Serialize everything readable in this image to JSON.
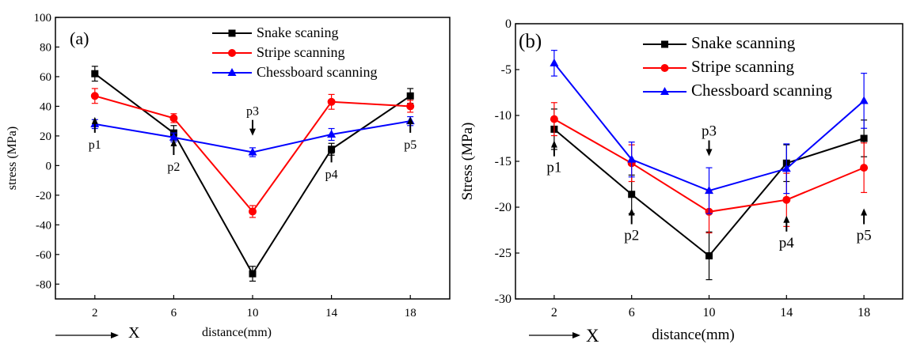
{
  "colors": {
    "snake": "#000000",
    "stripe": "#ff0000",
    "chess": "#0000ff"
  },
  "chart_data": [
    {
      "type": "line",
      "panel_label": "(a)",
      "xlabel": "distance(mm)",
      "ylabel": "stress (MPa)",
      "x_arrow_label": "X",
      "x": [
        2,
        6,
        10,
        14,
        18
      ],
      "xlim": [
        0,
        20
      ],
      "ylim": [
        -90,
        100
      ],
      "yticks": [
        -80,
        -60,
        -40,
        -20,
        0,
        20,
        40,
        60,
        80,
        100
      ],
      "legend_position": "top-center",
      "series": [
        {
          "name": "Snake scaning",
          "key": "snake",
          "marker": "square",
          "values": [
            62,
            22,
            -73,
            11,
            47
          ],
          "errors": [
            5,
            5,
            5,
            4,
            5
          ]
        },
        {
          "name": "Stripe scanning",
          "key": "stripe",
          "marker": "circle",
          "values": [
            47,
            32,
            -31,
            43,
            40
          ],
          "errors": [
            5,
            3,
            4,
            5,
            4
          ]
        },
        {
          "name": "Chessboard scanning",
          "key": "chess",
          "marker": "triangle",
          "values": [
            28,
            19,
            9,
            21,
            30
          ],
          "errors": [
            3,
            3,
            3,
            4,
            3
          ]
        }
      ],
      "annotations": [
        {
          "text": "p1",
          "x": 2,
          "y": 20,
          "arrow": "up"
        },
        {
          "text": "p2",
          "x": 6,
          "y": 5,
          "arrow": "up"
        },
        {
          "text": "p3",
          "x": 10,
          "y": 34,
          "arrow": "down"
        },
        {
          "text": "p4",
          "x": 14,
          "y": 0,
          "arrow": "up"
        },
        {
          "text": "p5",
          "x": 18,
          "y": 20,
          "arrow": "up"
        }
      ]
    },
    {
      "type": "line",
      "panel_label": "(b)",
      "xlabel": "distance(mm)",
      "ylabel": "Stress (MPa)",
      "x_arrow_label": "X",
      "x": [
        2,
        6,
        10,
        14,
        18
      ],
      "xlim": [
        0,
        20
      ],
      "ylim": [
        -30,
        0
      ],
      "yticks": [
        -30,
        -25,
        -20,
        -15,
        -10,
        -5,
        0
      ],
      "legend_position": "top-center",
      "series": [
        {
          "name": "Snake scanning",
          "key": "snake",
          "marker": "square",
          "values": [
            -11.5,
            -18.6,
            -25.3,
            -15.2,
            -12.5
          ],
          "errors": [
            2.2,
            2.1,
            2.6,
            2.0,
            2.0
          ]
        },
        {
          "name": "Stripe scanning",
          "key": "stripe",
          "marker": "circle",
          "values": [
            -10.4,
            -15.2,
            -20.5,
            -19.2,
            -15.7
          ],
          "errors": [
            1.8,
            2.0,
            2.3,
            2.9,
            2.7
          ]
        },
        {
          "name": "Chessboard scanning",
          "key": "chess",
          "marker": "triangle",
          "values": [
            -4.3,
            -14.8,
            -18.2,
            -15.8,
            -8.4
          ],
          "errors": [
            1.4,
            1.9,
            2.5,
            2.7,
            3.0
          ]
        }
      ],
      "annotations": [
        {
          "text": "p1",
          "x": 2,
          "y": -14.8,
          "arrow": "up"
        },
        {
          "text": "p2",
          "x": 6,
          "y": -22.2,
          "arrow": "up"
        },
        {
          "text": "p3",
          "x": 10,
          "y": -12.2,
          "arrow": "down"
        },
        {
          "text": "p4",
          "x": 14,
          "y": -23.0,
          "arrow": "up"
        },
        {
          "text": "p5",
          "x": 18,
          "y": -22.2,
          "arrow": "up"
        }
      ]
    }
  ]
}
